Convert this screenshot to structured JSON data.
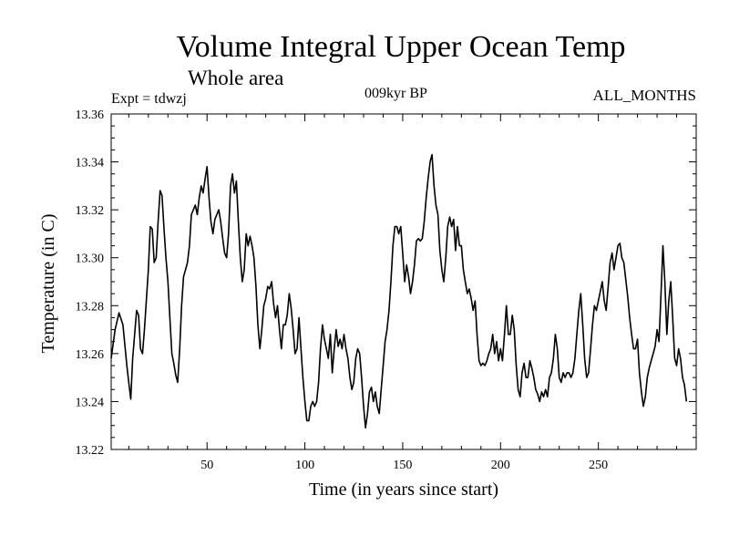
{
  "chart_data": {
    "type": "line",
    "title": "Volume Integral Upper Ocean Temp",
    "subtitle": "Whole area",
    "annotations": {
      "left": "Expt = tdwzj",
      "center": "009kyr BP",
      "right": "ALL_MONTHS"
    },
    "xlabel": "Time (in years since start)",
    "ylabel": "Temperature (in C)",
    "xlim": [
      1,
      300
    ],
    "ylim": [
      13.22,
      13.36
    ],
    "xticks": [
      50,
      100,
      150,
      200,
      250
    ],
    "xtick_labels": [
      "50",
      "100",
      "150",
      "200",
      "250"
    ],
    "yticks": [
      13.22,
      13.24,
      13.26,
      13.28,
      13.3,
      13.32,
      13.34,
      13.36
    ],
    "ytick_labels": [
      "13.22",
      "13.24",
      "13.26",
      "13.28",
      "13.30",
      "13.32",
      "13.34",
      "13.36"
    ],
    "grid": false,
    "series": [
      {
        "color": "#000000",
        "points": [
          [
            1,
            13.258
          ],
          [
            3,
            13.27
          ],
          [
            5,
            13.277
          ],
          [
            7,
            13.272
          ],
          [
            9,
            13.255
          ],
          [
            10,
            13.248
          ],
          [
            11,
            13.241
          ],
          [
            12,
            13.258
          ],
          [
            14,
            13.278
          ],
          [
            15,
            13.276
          ],
          [
            16,
            13.262
          ],
          [
            17,
            13.26
          ],
          [
            18,
            13.27
          ],
          [
            20,
            13.295
          ],
          [
            21,
            13.313
          ],
          [
            22,
            13.312
          ],
          [
            23,
            13.298
          ],
          [
            24,
            13.3
          ],
          [
            25,
            13.315
          ],
          [
            26,
            13.328
          ],
          [
            27,
            13.326
          ],
          [
            28,
            13.312
          ],
          [
            29,
            13.3
          ],
          [
            30,
            13.29
          ],
          [
            31,
            13.275
          ],
          [
            32,
            13.26
          ],
          [
            33,
            13.256
          ],
          [
            34,
            13.251
          ],
          [
            35,
            13.248
          ],
          [
            36,
            13.262
          ],
          [
            37,
            13.28
          ],
          [
            38,
            13.292
          ],
          [
            39,
            13.295
          ],
          [
            40,
            13.298
          ],
          [
            41,
            13.305
          ],
          [
            42,
            13.318
          ],
          [
            43,
            13.32
          ],
          [
            44,
            13.322
          ],
          [
            45,
            13.318
          ],
          [
            46,
            13.325
          ],
          [
            47,
            13.33
          ],
          [
            48,
            13.327
          ],
          [
            49,
            13.333
          ],
          [
            50,
            13.338
          ],
          [
            51,
            13.325
          ],
          [
            52,
            13.315
          ],
          [
            53,
            13.31
          ],
          [
            54,
            13.316
          ],
          [
            55,
            13.318
          ],
          [
            56,
            13.32
          ],
          [
            57,
            13.315
          ],
          [
            58,
            13.308
          ],
          [
            59,
            13.302
          ],
          [
            60,
            13.3
          ],
          [
            61,
            13.31
          ],
          [
            62,
            13.33
          ],
          [
            63,
            13.335
          ],
          [
            64,
            13.327
          ],
          [
            65,
            13.332
          ],
          [
            66,
            13.315
          ],
          [
            67,
            13.3
          ],
          [
            68,
            13.29
          ],
          [
            69,
            13.295
          ],
          [
            70,
            13.31
          ],
          [
            71,
            13.305
          ],
          [
            72,
            13.309
          ],
          [
            73,
            13.305
          ],
          [
            74,
            13.3
          ],
          [
            75,
            13.288
          ],
          [
            76,
            13.272
          ],
          [
            77,
            13.262
          ],
          [
            78,
            13.27
          ],
          [
            79,
            13.28
          ],
          [
            80,
            13.283
          ],
          [
            81,
            13.288
          ],
          [
            82,
            13.287
          ],
          [
            83,
            13.29
          ],
          [
            84,
            13.281
          ],
          [
            85,
            13.275
          ],
          [
            86,
            13.28
          ],
          [
            87,
            13.27
          ],
          [
            88,
            13.262
          ],
          [
            89,
            13.272
          ],
          [
            90,
            13.272
          ],
          [
            91,
            13.276
          ],
          [
            92,
            13.285
          ],
          [
            93,
            13.279
          ],
          [
            94,
            13.27
          ],
          [
            95,
            13.26
          ],
          [
            96,
            13.262
          ],
          [
            97,
            13.275
          ],
          [
            98,
            13.262
          ],
          [
            99,
            13.25
          ],
          [
            100,
            13.24
          ],
          [
            101,
            13.232
          ],
          [
            102,
            13.232
          ],
          [
            103,
            13.238
          ],
          [
            104,
            13.24
          ],
          [
            105,
            13.238
          ],
          [
            106,
            13.24
          ],
          [
            107,
            13.248
          ],
          [
            108,
            13.262
          ],
          [
            109,
            13.272
          ],
          [
            110,
            13.266
          ],
          [
            111,
            13.262
          ],
          [
            112,
            13.258
          ],
          [
            113,
            13.268
          ],
          [
            114,
            13.252
          ],
          [
            115,
            13.262
          ],
          [
            116,
            13.27
          ],
          [
            117,
            13.263
          ],
          [
            118,
            13.266
          ],
          [
            119,
            13.262
          ],
          [
            120,
            13.268
          ],
          [
            121,
            13.262
          ],
          [
            122,
            13.258
          ],
          [
            123,
            13.25
          ],
          [
            124,
            13.245
          ],
          [
            125,
            13.248
          ],
          [
            126,
            13.258
          ],
          [
            127,
            13.262
          ],
          [
            128,
            13.26
          ],
          [
            129,
            13.25
          ],
          [
            130,
            13.238
          ],
          [
            131,
            13.229
          ],
          [
            132,
            13.235
          ],
          [
            133,
            13.244
          ],
          [
            134,
            13.246
          ],
          [
            135,
            13.24
          ],
          [
            136,
            13.244
          ],
          [
            137,
            13.238
          ],
          [
            138,
            13.235
          ],
          [
            139,
            13.245
          ],
          [
            140,
            13.255
          ],
          [
            141,
            13.265
          ],
          [
            142,
            13.27
          ],
          [
            143,
            13.278
          ],
          [
            144,
            13.29
          ],
          [
            145,
            13.305
          ],
          [
            146,
            13.313
          ],
          [
            147,
            13.313
          ],
          [
            148,
            13.31
          ],
          [
            149,
            13.313
          ],
          [
            150,
            13.302
          ],
          [
            151,
            13.29
          ],
          [
            152,
            13.297
          ],
          [
            153,
            13.292
          ],
          [
            154,
            13.285
          ],
          [
            155,
            13.29
          ],
          [
            156,
            13.297
          ],
          [
            157,
            13.307
          ],
          [
            158,
            13.308
          ],
          [
            159,
            13.307
          ],
          [
            160,
            13.308
          ],
          [
            161,
            13.315
          ],
          [
            162,
            13.325
          ],
          [
            163,
            13.333
          ],
          [
            164,
            13.34
          ],
          [
            165,
            13.343
          ],
          [
            166,
            13.33
          ],
          [
            167,
            13.322
          ],
          [
            168,
            13.318
          ],
          [
            169,
            13.303
          ],
          [
            170,
            13.295
          ],
          [
            171,
            13.29
          ],
          [
            172,
            13.3
          ],
          [
            173,
            13.313
          ],
          [
            174,
            13.317
          ],
          [
            175,
            13.313
          ],
          [
            176,
            13.316
          ],
          [
            177,
            13.303
          ],
          [
            178,
            13.313
          ],
          [
            179,
            13.305
          ],
          [
            180,
            13.305
          ],
          [
            181,
            13.295
          ],
          [
            182,
            13.29
          ],
          [
            183,
            13.285
          ],
          [
            184,
            13.287
          ],
          [
            185,
            13.283
          ],
          [
            186,
            13.278
          ],
          [
            187,
            13.282
          ],
          [
            188,
            13.268
          ],
          [
            189,
            13.257
          ],
          [
            190,
            13.255
          ],
          [
            191,
            13.256
          ],
          [
            192,
            13.255
          ],
          [
            193,
            13.257
          ],
          [
            194,
            13.26
          ],
          [
            195,
            13.262
          ],
          [
            196,
            13.268
          ],
          [
            197,
            13.26
          ],
          [
            198,
            13.265
          ],
          [
            199,
            13.257
          ],
          [
            200,
            13.262
          ],
          [
            201,
            13.257
          ],
          [
            202,
            13.268
          ],
          [
            203,
            13.28
          ],
          [
            204,
            13.268
          ],
          [
            205,
            13.268
          ],
          [
            206,
            13.276
          ],
          [
            207,
            13.27
          ],
          [
            208,
            13.255
          ],
          [
            209,
            13.245
          ],
          [
            210,
            13.242
          ],
          [
            211,
            13.252
          ],
          [
            212,
            13.256
          ],
          [
            213,
            13.25
          ],
          [
            214,
            13.25
          ],
          [
            215,
            13.257
          ],
          [
            216,
            13.254
          ],
          [
            217,
            13.25
          ],
          [
            218,
            13.245
          ],
          [
            219,
            13.243
          ],
          [
            220,
            13.24
          ],
          [
            221,
            13.244
          ],
          [
            222,
            13.242
          ],
          [
            223,
            13.245
          ],
          [
            224,
            13.242
          ],
          [
            225,
            13.25
          ],
          [
            226,
            13.252
          ],
          [
            227,
            13.258
          ],
          [
            228,
            13.268
          ],
          [
            229,
            13.262
          ],
          [
            230,
            13.25
          ],
          [
            231,
            13.248
          ],
          [
            232,
            13.252
          ],
          [
            233,
            13.25
          ],
          [
            234,
            13.252
          ],
          [
            235,
            13.252
          ],
          [
            236,
            13.25
          ],
          [
            237,
            13.252
          ],
          [
            238,
            13.258
          ],
          [
            239,
            13.268
          ],
          [
            240,
            13.278
          ],
          [
            241,
            13.285
          ],
          [
            242,
            13.272
          ],
          [
            243,
            13.258
          ],
          [
            244,
            13.25
          ],
          [
            245,
            13.252
          ],
          [
            246,
            13.262
          ],
          [
            247,
            13.272
          ],
          [
            248,
            13.28
          ],
          [
            249,
            13.278
          ],
          [
            250,
            13.282
          ],
          [
            251,
            13.286
          ],
          [
            252,
            13.29
          ],
          [
            253,
            13.282
          ],
          [
            254,
            13.278
          ],
          [
            255,
            13.288
          ],
          [
            256,
            13.298
          ],
          [
            257,
            13.302
          ],
          [
            258,
            13.295
          ],
          [
            259,
            13.3
          ],
          [
            260,
            13.305
          ],
          [
            261,
            13.306
          ],
          [
            262,
            13.3
          ],
          [
            263,
            13.298
          ],
          [
            264,
            13.291
          ],
          [
            265,
            13.284
          ],
          [
            266,
            13.275
          ],
          [
            267,
            13.268
          ],
          [
            268,
            13.262
          ],
          [
            269,
            13.262
          ],
          [
            270,
            13.266
          ],
          [
            271,
            13.252
          ],
          [
            272,
            13.244
          ],
          [
            273,
            13.238
          ],
          [
            274,
            13.242
          ],
          [
            275,
            13.25
          ],
          [
            276,
            13.254
          ],
          [
            277,
            13.257
          ],
          [
            278,
            13.26
          ],
          [
            279,
            13.263
          ],
          [
            280,
            13.27
          ],
          [
            281,
            13.265
          ],
          [
            282,
            13.285
          ],
          [
            283,
            13.305
          ],
          [
            284,
            13.29
          ],
          [
            285,
            13.268
          ],
          [
            286,
            13.282
          ],
          [
            287,
            13.29
          ],
          [
            288,
            13.275
          ],
          [
            289,
            13.258
          ],
          [
            290,
            13.255
          ],
          [
            291,
            13.262
          ],
          [
            292,
            13.258
          ],
          [
            293,
            13.25
          ],
          [
            294,
            13.247
          ],
          [
            295,
            13.24
          ]
        ]
      }
    ]
  }
}
